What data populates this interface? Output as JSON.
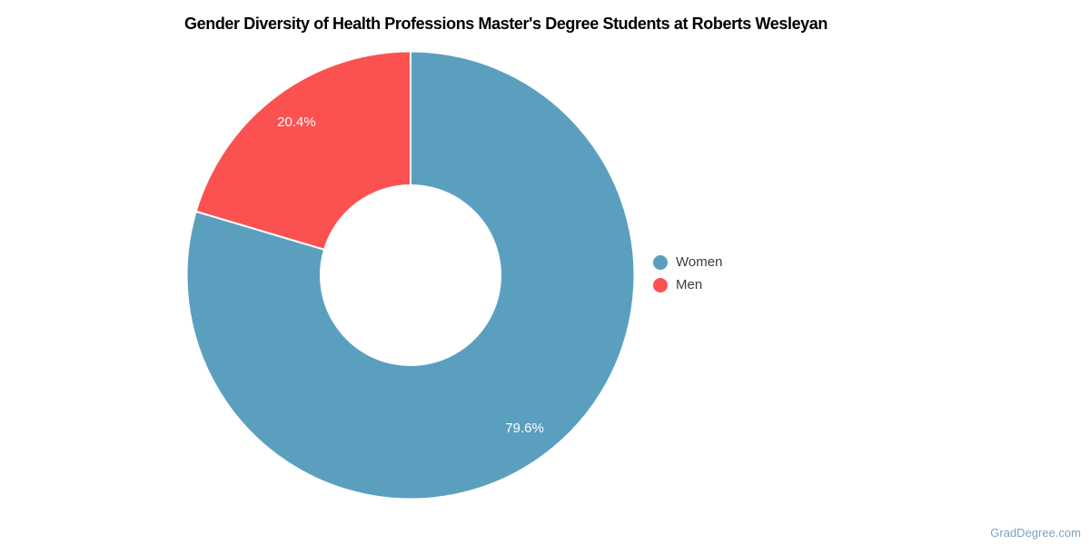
{
  "header": {
    "title": "Gender Diversity of Health Professions Master's Degree Students at Roberts Wesleyan"
  },
  "chart_data": {
    "type": "pie",
    "subtype": "donut",
    "title": "Gender Diversity of Health Professions Master's Degree Students at Roberts Wesleyan",
    "categories": [
      "Women",
      "Men"
    ],
    "values": [
      79.6,
      20.4
    ],
    "value_labels": [
      "79.6%",
      "20.4%"
    ],
    "colors": [
      "#5B9FBF",
      "#FC5151"
    ],
    "label_color": "#FFFFFF",
    "start_angle": 0,
    "direction": "clockwise",
    "inner_radius_ratio": 0.4,
    "legend_position": "right",
    "slice_border_color": "#FFFFFF"
  },
  "footer": {
    "watermark": "GradDegree.com"
  }
}
